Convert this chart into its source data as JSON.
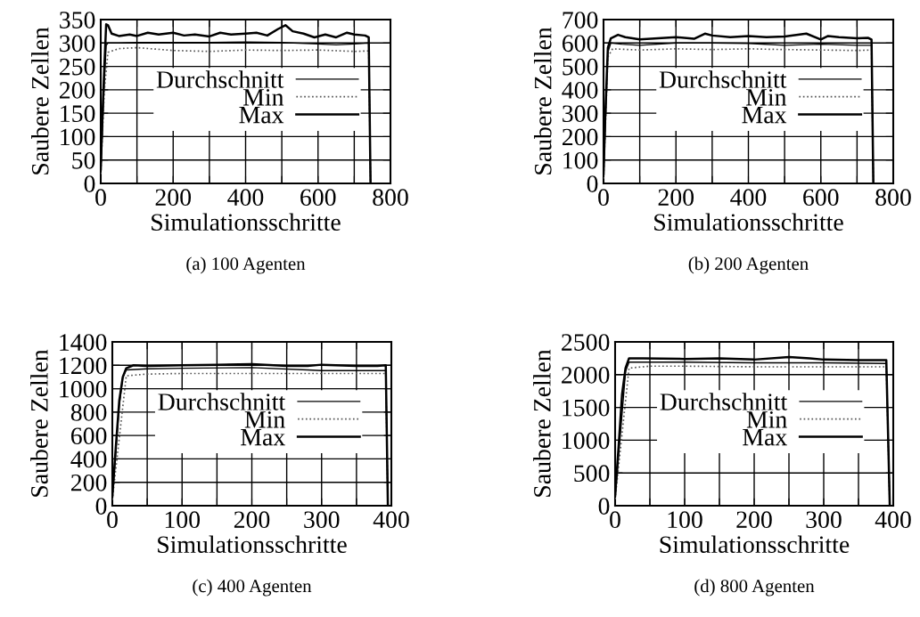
{
  "chart_data": [
    {
      "type": "line",
      "xlabel": "Simulationsschritte",
      "ylabel": "Saubere Zellen",
      "annotations": [
        "(a) 100 Agenten"
      ],
      "xlim": [
        0,
        800
      ],
      "ylim": [
        0,
        350
      ],
      "xticks": [
        0,
        {
          "value": 100,
          "label": null
        },
        200,
        {
          "value": 300,
          "label": null
        },
        400,
        {
          "value": 500,
          "label": null
        },
        600,
        {
          "value": 700,
          "label": null
        },
        800
      ],
      "yticks": [
        0,
        50,
        100,
        150,
        200,
        250,
        300,
        350
      ],
      "grid": true,
      "legend": "top right",
      "series": [
        {
          "name": "Durchschnitt",
          "color": "#000000",
          "line_style": "solid",
          "x": [
            0,
            5,
            10,
            15,
            20,
            50,
            100,
            200,
            300,
            400,
            500,
            600,
            650,
            700,
            740,
            745
          ],
          "values": [
            25,
            120,
            220,
            295,
            300,
            300,
            301,
            301,
            301,
            302,
            301,
            298,
            296,
            298,
            300,
            0
          ]
        },
        {
          "name": "Min",
          "color": "#555555",
          "line_style": "dotted",
          "x": [
            0,
            10,
            20,
            50,
            100,
            200,
            300,
            400,
            500,
            600,
            700,
            740,
            745
          ],
          "values": [
            20,
            200,
            280,
            288,
            290,
            284,
            282,
            285,
            284,
            285,
            282,
            283,
            0
          ]
        },
        {
          "name": "Max",
          "color": "#000000",
          "line_style": "solid",
          "x": [
            0,
            5,
            10,
            15,
            20,
            30,
            50,
            80,
            100,
            130,
            160,
            200,
            230,
            260,
            300,
            330,
            360,
            400,
            430,
            460,
            490,
            510,
            530,
            560,
            590,
            620,
            650,
            680,
            700,
            730,
            740,
            745
          ],
          "values": [
            30,
            150,
            250,
            340,
            338,
            320,
            315,
            318,
            315,
            322,
            318,
            322,
            316,
            318,
            314,
            322,
            318,
            320,
            322,
            316,
            330,
            338,
            325,
            320,
            312,
            318,
            312,
            322,
            318,
            316,
            312,
            0
          ]
        }
      ]
    },
    {
      "type": "line",
      "xlabel": "Simulationsschritte",
      "ylabel": "Saubere Zellen",
      "annotations": [
        "(b) 200 Agenten"
      ],
      "xlim": [
        0,
        800
      ],
      "ylim": [
        0,
        700
      ],
      "xticks": [
        0,
        {
          "value": 100,
          "label": null
        },
        200,
        {
          "value": 300,
          "label": null
        },
        400,
        {
          "value": 500,
          "label": null
        },
        600,
        {
          "value": 700,
          "label": null
        },
        800
      ],
      "yticks": [
        0,
        100,
        200,
        300,
        400,
        500,
        600,
        700
      ],
      "grid": true,
      "legend": "top right",
      "series": [
        {
          "name": "Durchschnitt",
          "color": "#000000",
          "line_style": "solid",
          "x": [
            0,
            5,
            12,
            20,
            50,
            100,
            200,
            300,
            400,
            500,
            600,
            700,
            740,
            745
          ],
          "values": [
            30,
            250,
            560,
            600,
            595,
            590,
            600,
            600,
            598,
            590,
            595,
            590,
            590,
            0
          ]
        },
        {
          "name": "Min",
          "color": "#555555",
          "line_style": "dotted",
          "x": [
            0,
            12,
            25,
            100,
            200,
            300,
            400,
            500,
            600,
            700,
            740,
            745
          ],
          "values": [
            20,
            540,
            575,
            570,
            575,
            572,
            575,
            572,
            570,
            568,
            570,
            0
          ]
        },
        {
          "name": "Max",
          "color": "#000000",
          "line_style": "solid",
          "x": [
            0,
            5,
            12,
            20,
            40,
            60,
            100,
            150,
            200,
            250,
            280,
            300,
            350,
            400,
            450,
            500,
            560,
            600,
            620,
            650,
            700,
            730,
            740,
            745
          ],
          "values": [
            40,
            300,
            580,
            620,
            635,
            625,
            615,
            620,
            625,
            618,
            640,
            632,
            625,
            630,
            625,
            628,
            640,
            615,
            630,
            625,
            620,
            622,
            615,
            0
          ]
        }
      ]
    },
    {
      "type": "line",
      "xlabel": "Simulationsschritte",
      "ylabel": "Saubere Zellen",
      "annotations": [
        "(c) 400 Agenten"
      ],
      "xlim": [
        0,
        400
      ],
      "ylim": [
        0,
        1400
      ],
      "xticks": [
        0,
        {
          "value": 50,
          "label": null
        },
        100,
        {
          "value": 150,
          "label": null
        },
        200,
        {
          "value": 250,
          "label": null
        },
        300,
        {
          "value": 350,
          "label": null
        },
        400
      ],
      "yticks": [
        0,
        200,
        400,
        600,
        800,
        1000,
        1200,
        1400
      ],
      "grid": true,
      "legend": "top right",
      "series": [
        {
          "name": "Durchschnitt",
          "color": "#000000",
          "line_style": "solid",
          "x": [
            0,
            10,
            15,
            20,
            50,
            100,
            200,
            280,
            300,
            350,
            392,
            395
          ],
          "values": [
            70,
            850,
            1100,
            1160,
            1170,
            1175,
            1180,
            1160,
            1155,
            1155,
            1155,
            0
          ]
        },
        {
          "name": "Min",
          "color": "#555555",
          "line_style": "dotted",
          "x": [
            0,
            20,
            50,
            100,
            200,
            300,
            392,
            395
          ],
          "values": [
            50,
            1110,
            1125,
            1130,
            1130,
            1130,
            1130,
            0
          ]
        },
        {
          "name": "Max",
          "color": "#000000",
          "line_style": "solid",
          "x": [
            0,
            5,
            10,
            15,
            20,
            30,
            50,
            100,
            150,
            200,
            250,
            280,
            300,
            350,
            380,
            392,
            395
          ],
          "values": [
            80,
            500,
            900,
            1100,
            1175,
            1200,
            1195,
            1200,
            1205,
            1210,
            1195,
            1195,
            1205,
            1195,
            1195,
            1200,
            0
          ]
        }
      ]
    },
    {
      "type": "line",
      "xlabel": "Simulationsschritte",
      "ylabel": "Saubere Zellen",
      "annotations": [
        "(d) 800 Agenten"
      ],
      "xlim": [
        0,
        400
      ],
      "ylim": [
        0,
        2500
      ],
      "xticks": [
        0,
        {
          "value": 50,
          "label": null
        },
        100,
        {
          "value": 150,
          "label": null
        },
        200,
        {
          "value": 250,
          "label": null
        },
        300,
        {
          "value": 350,
          "label": null
        },
        400
      ],
      "yticks": [
        0,
        500,
        1000,
        1500,
        2000,
        2500
      ],
      "grid": true,
      "legend": "top right",
      "series": [
        {
          "name": "Durchschnitt",
          "color": "#000000",
          "line_style": "solid",
          "x": [
            0,
            15,
            20,
            50,
            100,
            200,
            300,
            390,
            395
          ],
          "values": [
            120,
            2050,
            2190,
            2190,
            2190,
            2180,
            2180,
            2170,
            0
          ]
        },
        {
          "name": "Min",
          "color": "#555555",
          "line_style": "dotted",
          "x": [
            0,
            20,
            50,
            100,
            200,
            300,
            390,
            395
          ],
          "values": [
            100,
            2100,
            2130,
            2130,
            2120,
            2120,
            2120,
            0
          ]
        },
        {
          "name": "Max",
          "color": "#000000",
          "line_style": "solid",
          "x": [
            0,
            5,
            10,
            15,
            20,
            40,
            100,
            150,
            200,
            250,
            280,
            300,
            350,
            390,
            395
          ],
          "values": [
            150,
            900,
            1700,
            2100,
            2250,
            2250,
            2240,
            2250,
            2230,
            2270,
            2250,
            2230,
            2220,
            2220,
            0
          ]
        }
      ]
    }
  ]
}
